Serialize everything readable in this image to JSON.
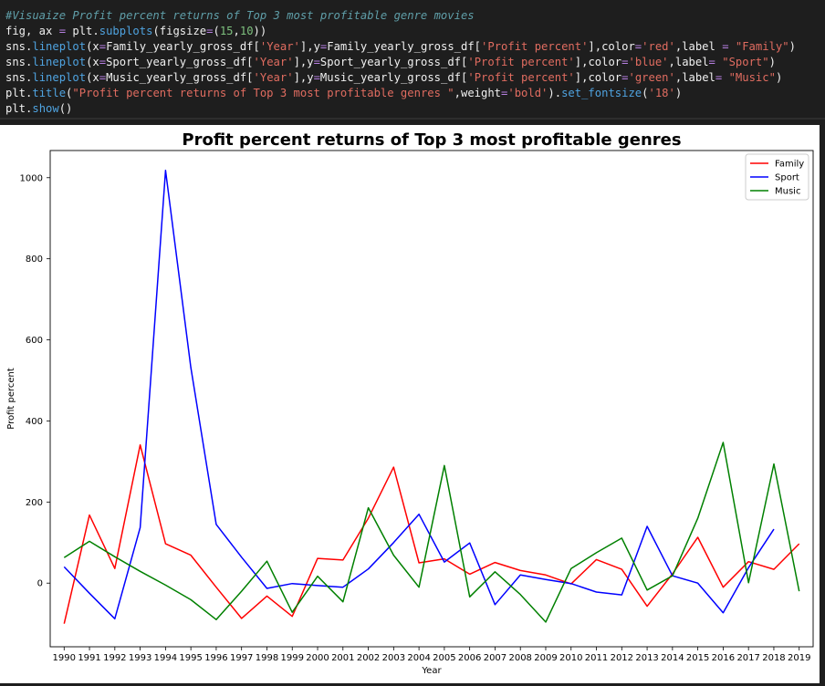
{
  "code": {
    "comment": "#Visuaize Profit percent returns of Top 3 most profitable genre movies",
    "line2": {
      "a": "fig, ax ",
      "eq": "=",
      "b": " plt.",
      "fn": "subplots",
      "c": "(figsize",
      "eq2": "=",
      "d": "(",
      "n1": "15",
      "e": ",",
      "n2": "10",
      "f": "))"
    },
    "line3": {
      "a": "sns.",
      "fn": "lineplot",
      "b": "(x",
      "eq": "=",
      "c": "Family_yearly_gross_df[",
      "s1": "'Year'",
      "d": "],y",
      "eq2": "=",
      "e": "Family_yearly_gross_df[",
      "s2": "'Profit percent'",
      "f": "],color",
      "eq3": "=",
      "s3": "'red'",
      "g": ",label ",
      "eq4": "=",
      "s4": " \"Family\"",
      "h": ")"
    },
    "line4": {
      "a": "sns.",
      "fn": "lineplot",
      "b": "(x",
      "eq": "=",
      "c": "Sport_yearly_gross_df[",
      "s1": "'Year'",
      "d": "],y",
      "eq2": "=",
      "e": "Sport_yearly_gross_df[",
      "s2": "'Profit percent'",
      "f": "],color",
      "eq3": "=",
      "s3": "'blue'",
      "g": ",label",
      "eq4": "=",
      "s4": " \"Sport\"",
      "h": ")"
    },
    "line5": {
      "a": "sns.",
      "fn": "lineplot",
      "b": "(x",
      "eq": "=",
      "c": "Music_yearly_gross_df[",
      "s1": "'Year'",
      "d": "],y",
      "eq2": "=",
      "e": "Music_yearly_gross_df[",
      "s2": "'Profit percent'",
      "f": "],color",
      "eq3": "=",
      "s3": "'green'",
      "g": ",label",
      "eq4": "=",
      "s4": " \"Music\"",
      "h": ")"
    },
    "line6": {
      "a": "plt.",
      "fn": "title",
      "b": "(",
      "s1": "\"Profit percent returns of Top 3 most profitable genres \"",
      "c": ",weight",
      "eq": "=",
      "s2": "'bold'",
      "d": ").",
      "fn2": "set_fontsize",
      "e": "(",
      "s3": "'18'",
      "f": ")"
    },
    "line7": {
      "a": "plt.",
      "fn": "show",
      "b": "()"
    }
  },
  "chart_data": {
    "type": "line",
    "title": "Profit percent returns of Top 3 most profitable genres",
    "xlabel": "Year",
    "ylabel": "Profit percent",
    "x": [
      1990,
      1991,
      1992,
      1993,
      1994,
      1995,
      1996,
      1997,
      1998,
      1999,
      2000,
      2001,
      2002,
      2003,
      2004,
      2005,
      2006,
      2007,
      2008,
      2009,
      2010,
      2011,
      2012,
      2013,
      2014,
      2015,
      2016,
      2017,
      2018,
      2019
    ],
    "xlim": [
      1989.45,
      2019.55
    ],
    "ylim": [
      -157,
      1067
    ],
    "yticks": [
      0,
      200,
      400,
      600,
      800,
      1000
    ],
    "grid": false,
    "legend_position": "top-right",
    "series": [
      {
        "name": "Family",
        "color": "#ff0000",
        "values": [
          -100,
          168,
          36,
          341,
          97,
          69,
          -10,
          -87,
          -32,
          -82,
          61,
          57,
          160,
          286,
          50,
          60,
          22,
          51,
          31,
          20,
          -2,
          58,
          34,
          -57,
          23,
          113,
          -10,
          53,
          34,
          97
        ]
      },
      {
        "name": "Sport",
        "color": "#0000ff",
        "values": [
          40,
          -25,
          -88,
          137,
          1018,
          532,
          145,
          64,
          -13,
          -1,
          -6,
          -10,
          35,
          100,
          170,
          52,
          99,
          -53,
          20,
          9,
          -1,
          -22,
          -29,
          140,
          18,
          0,
          -73,
          38,
          133,
          null
        ]
      },
      {
        "name": "Music",
        "color": "#008000",
        "values": [
          63,
          103,
          65,
          29,
          -5,
          -41,
          -90,
          -20,
          54,
          -72,
          17,
          -46,
          186,
          69,
          -10,
          290,
          -34,
          28,
          -28,
          -96,
          36,
          75,
          111,
          -17,
          18,
          160,
          347,
          1,
          294,
          -20
        ]
      }
    ]
  }
}
